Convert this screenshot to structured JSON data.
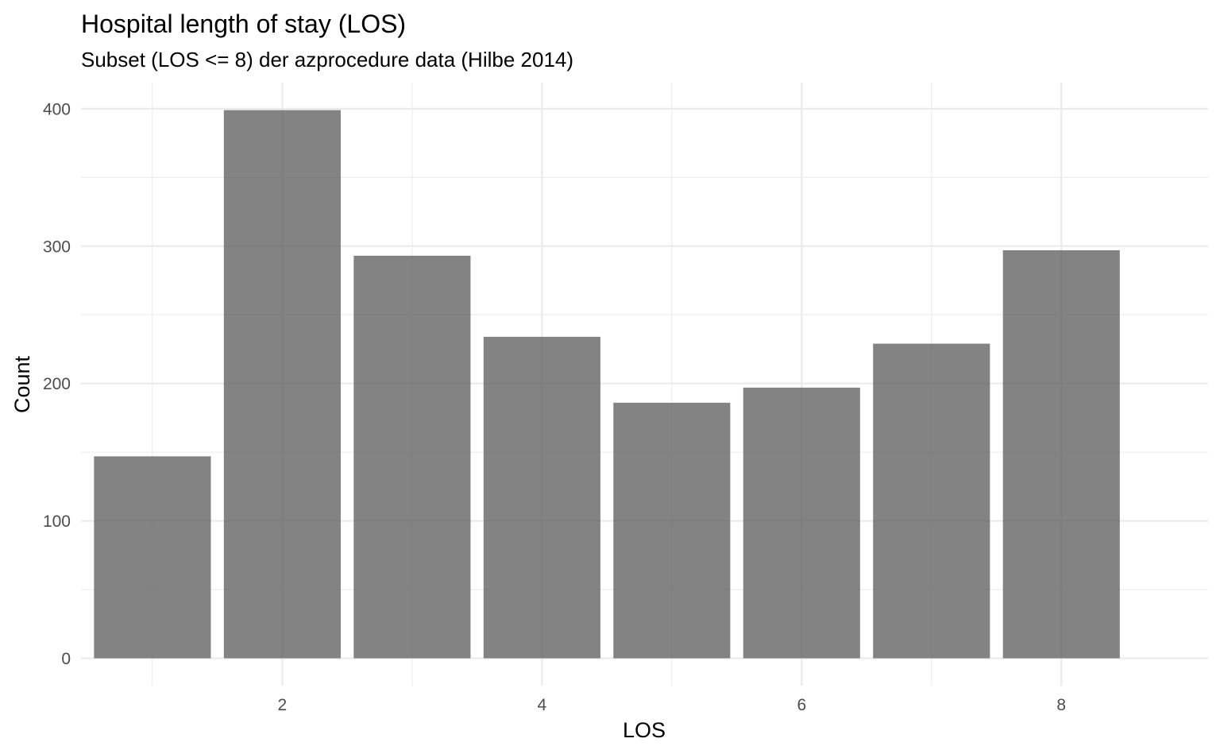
{
  "chart_data": {
    "type": "bar",
    "title": "Hospital length of stay (LOS)",
    "subtitle": "Subset (LOS <= 8) der azprocedure data (Hilbe 2014)",
    "xlabel": "LOS",
    "ylabel": "Count",
    "x": [
      1,
      2,
      3,
      4,
      5,
      6,
      7,
      8
    ],
    "values": [
      147,
      399,
      293,
      234,
      186,
      197,
      229,
      297
    ],
    "xlim": [
      0.45,
      9.13
    ],
    "ylim": [
      -19.95,
      419
    ],
    "x_ticks": [
      2,
      4,
      6,
      8
    ],
    "x_tick_labels": [
      "2",
      "4",
      "6",
      "8"
    ],
    "x_minor": [
      1,
      3,
      5,
      7
    ],
    "y_ticks": [
      0,
      100,
      200,
      300,
      400
    ],
    "y_tick_labels": [
      "0",
      "100",
      "200",
      "300",
      "400"
    ],
    "y_minor": [
      50,
      150,
      250,
      350
    ],
    "bar_width": 0.9,
    "grid": true,
    "legend": "none",
    "colors": {
      "bar": "#595959",
      "bar_opacity": 0.75,
      "grid": "#ebebeb",
      "tick_text": "#4d4d4d",
      "background": "#ffffff"
    }
  }
}
